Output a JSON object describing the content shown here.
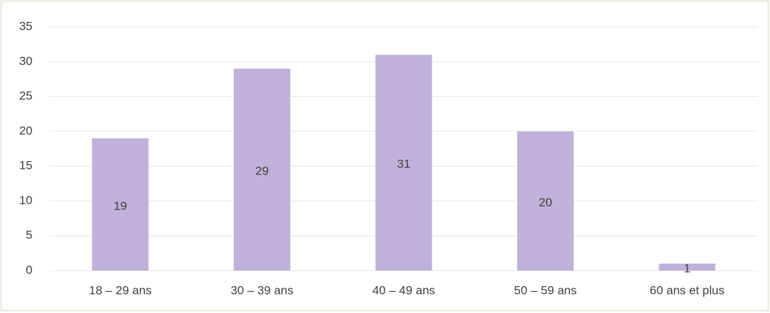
{
  "chart_data": {
    "type": "bar",
    "categories": [
      "18 – 29 ans",
      "30 – 39 ans",
      "40 – 49 ans",
      "50 – 59 ans",
      "60 ans et plus"
    ],
    "values": [
      19,
      29,
      31,
      20,
      1
    ],
    "color": "#bfb1d9",
    "ylim": [
      0,
      35
    ],
    "yticks": [
      0,
      5,
      10,
      15,
      20,
      25,
      30,
      35
    ],
    "grid": true
  }
}
